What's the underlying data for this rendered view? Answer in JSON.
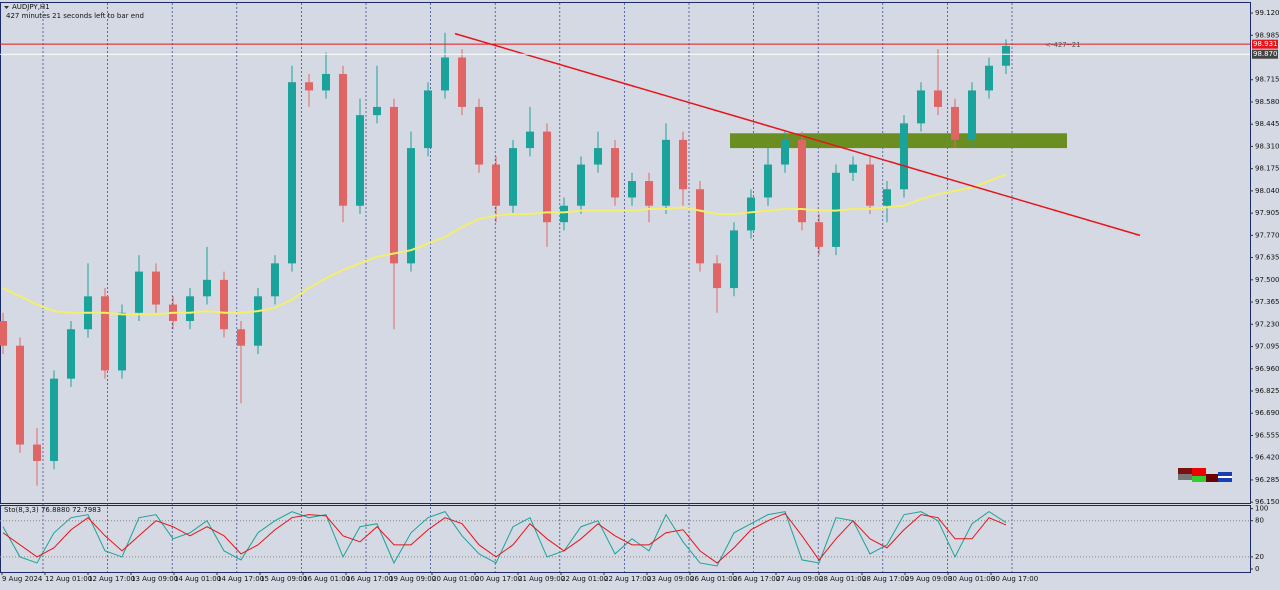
{
  "chart_data": {
    "type": "candlestick",
    "title": "AUDJPY,H1",
    "subtitle": "427 minutes 21 seconds left to bar end",
    "background": "#d5d9e3",
    "up_color": "#1aa39a",
    "down_color": "#e06666",
    "open": [
      97.25,
      97.1,
      96.5,
      96.4,
      96.9,
      97.2,
      97.4,
      96.95,
      97.3,
      97.55,
      97.35,
      97.25,
      97.4,
      97.5,
      97.2,
      97.1,
      97.4,
      97.6,
      98.7,
      98.65,
      98.75,
      97.95,
      98.5,
      98.55,
      97.6,
      98.3,
      98.65,
      98.85,
      98.55,
      98.2,
      97.95,
      98.3,
      98.4,
      97.85,
      97.95,
      98.2,
      98.3,
      98.0,
      98.1,
      97.95,
      98.35,
      98.05,
      97.6,
      97.45,
      97.8,
      98.0,
      98.2,
      98.35,
      97.85,
      97.7,
      98.15,
      98.2,
      97.95,
      98.05,
      98.45,
      98.65,
      98.55,
      98.35,
      98.65,
      98.8
    ],
    "high": [
      97.3,
      97.15,
      96.6,
      96.95,
      97.25,
      97.6,
      97.45,
      97.35,
      97.65,
      97.6,
      97.4,
      97.45,
      97.7,
      97.55,
      97.25,
      97.45,
      97.65,
      98.8,
      98.75,
      98.88,
      98.8,
      98.6,
      98.8,
      98.6,
      98.4,
      98.7,
      99.0,
      98.9,
      98.6,
      98.25,
      98.35,
      98.55,
      98.45,
      98.0,
      98.25,
      98.4,
      98.35,
      98.15,
      98.15,
      98.45,
      98.4,
      98.1,
      97.65,
      97.85,
      98.05,
      98.3,
      98.4,
      98.4,
      97.9,
      98.2,
      98.25,
      98.25,
      98.1,
      98.5,
      98.7,
      98.9,
      98.6,
      98.7,
      98.85,
      98.96
    ],
    "low": [
      97.05,
      96.45,
      96.25,
      96.35,
      96.85,
      97.15,
      96.9,
      96.9,
      97.25,
      97.3,
      97.2,
      97.2,
      97.35,
      97.15,
      96.75,
      97.05,
      97.35,
      97.55,
      98.55,
      98.6,
      97.85,
      97.9,
      98.45,
      97.2,
      97.55,
      98.25,
      98.6,
      98.5,
      98.15,
      97.85,
      97.9,
      98.25,
      97.7,
      97.8,
      97.9,
      98.15,
      97.95,
      97.95,
      97.85,
      97.9,
      97.95,
      97.55,
      97.3,
      97.4,
      97.75,
      97.95,
      98.15,
      97.8,
      97.65,
      97.65,
      98.1,
      97.9,
      97.85,
      98.0,
      98.4,
      98.5,
      98.3,
      98.3,
      98.6,
      98.75
    ],
    "close": [
      97.1,
      96.5,
      96.4,
      96.9,
      97.2,
      97.4,
      96.95,
      97.3,
      97.55,
      97.35,
      97.25,
      97.4,
      97.5,
      97.2,
      97.1,
      97.4,
      97.6,
      98.7,
      98.65,
      98.75,
      97.95,
      98.5,
      98.55,
      97.6,
      98.3,
      98.65,
      98.85,
      98.55,
      98.2,
      97.95,
      98.3,
      98.4,
      97.85,
      97.95,
      98.2,
      98.3,
      98.0,
      98.1,
      97.95,
      98.35,
      98.05,
      97.6,
      97.45,
      97.8,
      98.0,
      98.2,
      98.35,
      97.85,
      97.7,
      98.15,
      98.2,
      97.95,
      98.05,
      98.45,
      98.65,
      98.55,
      98.35,
      98.65,
      98.8,
      98.92
    ],
    "ma": {
      "color": "#f2ee6e",
      "values": [
        97.45,
        97.4,
        97.35,
        97.31,
        97.3,
        97.3,
        97.3,
        97.29,
        97.29,
        97.29,
        97.3,
        97.3,
        97.31,
        97.3,
        97.3,
        97.31,
        97.33,
        97.38,
        97.45,
        97.51,
        97.56,
        97.6,
        97.64,
        97.66,
        97.68,
        97.72,
        97.76,
        97.82,
        97.87,
        97.89,
        97.9,
        97.9,
        97.91,
        97.91,
        97.92,
        97.92,
        97.92,
        97.92,
        97.93,
        97.93,
        97.94,
        97.92,
        97.9,
        97.9,
        97.91,
        97.92,
        97.93,
        97.93,
        97.92,
        97.92,
        97.93,
        97.93,
        97.94,
        97.95,
        97.99,
        98.02,
        98.04,
        98.06,
        98.1,
        98.14
      ]
    },
    "trendline": {
      "color": "#e8141b",
      "start": 98.995,
      "end": 97.77
    },
    "zone": {
      "color": "#6b8e23",
      "top": 98.39,
      "bottom": 98.3
    },
    "bid_line": {
      "value": 98.931,
      "label": "98.931",
      "color": "#e8141b"
    },
    "ask_line": {
      "value": 98.87,
      "label": "98.870",
      "color": "#ffffff"
    },
    "timer_label": "<-427--21",
    "xticks": [
      "9 Aug 2024",
      "12 Aug 01:00",
      "12 Aug 17:00",
      "13 Aug 09:00",
      "14 Aug 01:00",
      "14 Aug 17:00",
      "15 Aug 09:00",
      "16 Aug 01:00",
      "16 Aug 17:00",
      "19 Aug 09:00",
      "20 Aug 01:00",
      "20 Aug 17:00",
      "21 Aug 09:00",
      "22 Aug 01:00",
      "22 Aug 17:00",
      "23 Aug 09:00",
      "26 Aug 01:00",
      "26 Aug 17:00",
      "27 Aug 09:00",
      "28 Aug 01:00",
      "28 Aug 17:00",
      "29 Aug 09:00",
      "30 Aug 01:00",
      "30 Aug 17:00"
    ],
    "ylim": [
      96.145,
      99.187
    ],
    "yticks": [
      {
        "value": 99.12,
        "label": "99.120"
      },
      98.985,
      98.715,
      {
        "value": 98.58,
        "label": "98.580"
      },
      98.445,
      {
        "value": 98.31,
        "label": "98.310"
      },
      98.175,
      {
        "value": 98.04,
        "label": "98.040"
      },
      97.905,
      {
        "value": 97.77,
        "label": "97.770"
      },
      97.635,
      {
        "value": 97.5,
        "label": "97.500"
      },
      97.365,
      {
        "value": 97.23,
        "label": "97.230"
      },
      97.095,
      {
        "value": 96.96,
        "label": "96.960"
      },
      96.825,
      {
        "value": 96.69,
        "label": "96.690"
      },
      96.555,
      {
        "value": 96.42,
        "label": "96.420"
      },
      96.285,
      {
        "value": 96.15,
        "label": "96.150"
      }
    ],
    "indicator": {
      "label": "Sto(8,3,3) 76.8880 72.7983",
      "ylim": [
        -5,
        106
      ],
      "yticks": [
        100,
        80,
        20,
        0
      ],
      "levels": [
        80,
        20
      ],
      "series": [
        {
          "color": "#1aa39a",
          "values": [
            70,
            20,
            10,
            60,
            85,
            90,
            30,
            20,
            85,
            90,
            50,
            60,
            80,
            30,
            15,
            60,
            80,
            95,
            85,
            90,
            20,
            70,
            75,
            10,
            60,
            85,
            95,
            55,
            25,
            10,
            70,
            85,
            20,
            30,
            70,
            80,
            25,
            50,
            30,
            90,
            45,
            10,
            5,
            60,
            75,
            90,
            95,
            15,
            10,
            85,
            80,
            25,
            40,
            90,
            95,
            80,
            20,
            75,
            95,
            77
          ]
        },
        {
          "color": "#e8141b",
          "values": [
            60,
            40,
            20,
            35,
            65,
            85,
            55,
            30,
            55,
            80,
            70,
            55,
            70,
            55,
            25,
            40,
            65,
            85,
            90,
            88,
            55,
            45,
            70,
            40,
            40,
            65,
            85,
            75,
            40,
            20,
            40,
            75,
            50,
            30,
            50,
            75,
            55,
            40,
            40,
            60,
            65,
            30,
            10,
            35,
            65,
            80,
            92,
            55,
            15,
            50,
            80,
            50,
            35,
            65,
            90,
            85,
            50,
            50,
            85,
            73
          ]
        }
      ]
    }
  }
}
